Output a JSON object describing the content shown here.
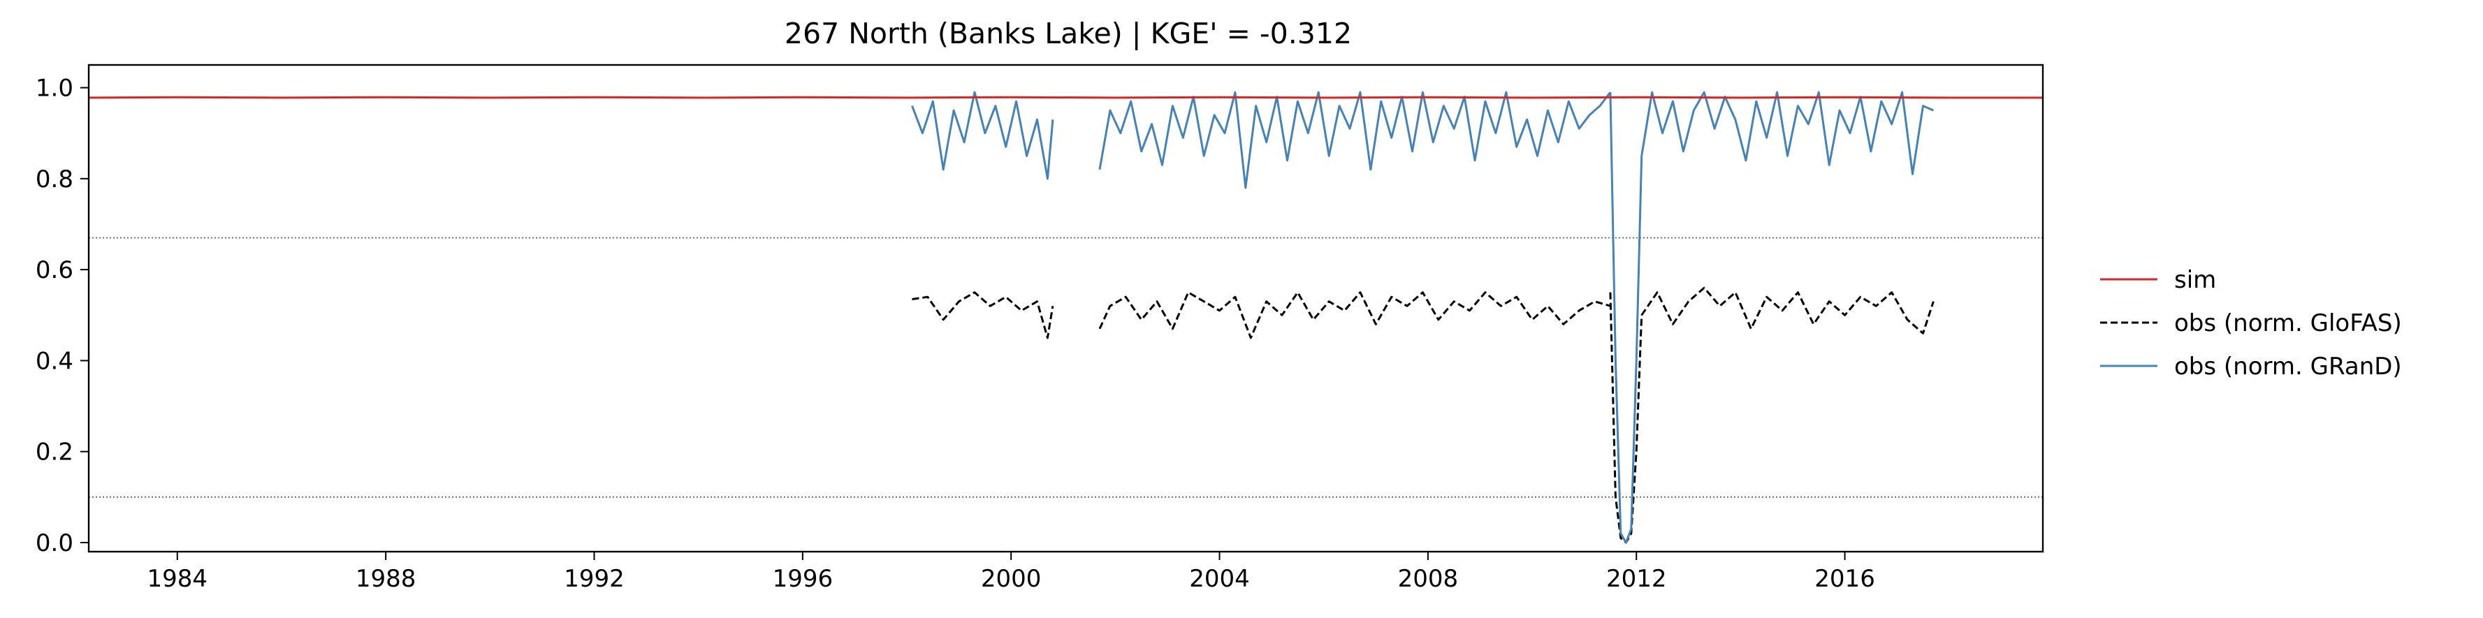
{
  "chart_data": {
    "type": "line",
    "title": "267  North (Banks Lake) | KGE' = -0.312",
    "xlabel": "",
    "ylabel": "",
    "xlim": [
      1982.3,
      2019.8
    ],
    "ylim": [
      -0.02,
      1.05
    ],
    "xticks": [
      1984,
      1988,
      1992,
      1996,
      2000,
      2004,
      2008,
      2012,
      2016
    ],
    "xtick_labels": [
      "1984",
      "1988",
      "1992",
      "1996",
      "2000",
      "2004",
      "2008",
      "2012",
      "2016"
    ],
    "yticks": [
      0.0,
      0.2,
      0.4,
      0.6,
      0.8,
      1.0
    ],
    "ytick_labels": [
      "0.0",
      "0.2",
      "0.4",
      "0.6",
      "0.8",
      "1.0"
    ],
    "reference_lines": [
      0.978,
      0.67,
      0.1
    ],
    "grid": false,
    "legend_position": "outside-right",
    "colors": {
      "sim": "#d62728",
      "glofas": "#000000",
      "grand": "#4682b4",
      "refline": "#555555"
    },
    "series": [
      {
        "name": "sim",
        "style": "solid",
        "x": [
          1982.3,
          1984,
          1986,
          1988,
          1990,
          1992,
          1994,
          1996,
          1998,
          2000,
          2002,
          2004,
          2006,
          2008,
          2010,
          2012,
          2014,
          2016,
          2018,
          2019.8
        ],
        "values": [
          0.978,
          0.979,
          0.978,
          0.979,
          0.978,
          0.979,
          0.978,
          0.979,
          0.978,
          0.979,
          0.978,
          0.979,
          0.978,
          0.979,
          0.978,
          0.979,
          0.978,
          0.979,
          0.978,
          0.978
        ]
      },
      {
        "name": "obs (norm. GloFAS)",
        "style": "dashed",
        "segments": [
          {
            "x": [
              1998.1,
              1998.4,
              1998.7,
              1999.0,
              1999.3,
              1999.6,
              1999.9,
              2000.2,
              2000.5,
              2000.7,
              2000.8
            ],
            "values": [
              0.535,
              0.54,
              0.49,
              0.53,
              0.55,
              0.52,
              0.54,
              0.51,
              0.53,
              0.45,
              0.52
            ]
          },
          {
            "x": [
              2001.7,
              2001.9,
              2002.2,
              2002.5,
              2002.8,
              2003.1,
              2003.4,
              2003.7,
              2004.0,
              2004.3,
              2004.6,
              2004.9,
              2005.2,
              2005.5,
              2005.8,
              2006.1,
              2006.4,
              2006.7,
              2007.0,
              2007.3,
              2007.6,
              2007.9,
              2008.2,
              2008.5,
              2008.8,
              2009.1,
              2009.4,
              2009.7,
              2010.0,
              2010.3,
              2010.6,
              2010.9,
              2011.2,
              2011.5
            ],
            "values": [
              0.47,
              0.52,
              0.54,
              0.49,
              0.53,
              0.47,
              0.55,
              0.53,
              0.51,
              0.54,
              0.45,
              0.53,
              0.5,
              0.55,
              0.49,
              0.53,
              0.51,
              0.55,
              0.48,
              0.54,
              0.52,
              0.55,
              0.49,
              0.53,
              0.51,
              0.55,
              0.52,
              0.54,
              0.49,
              0.52,
              0.48,
              0.51,
              0.53,
              0.52
            ]
          },
          {
            "x": [
              2011.5,
              2011.6,
              2011.7,
              2011.8,
              2011.9,
              2012.0,
              2012.1
            ],
            "values": [
              0.55,
              0.1,
              0.01,
              0.0,
              0.02,
              0.2,
              0.5
            ]
          },
          {
            "x": [
              2012.1,
              2012.4,
              2012.7,
              2013.0,
              2013.3,
              2013.6,
              2013.9,
              2014.2,
              2014.5,
              2014.8,
              2015.1,
              2015.4,
              2015.7,
              2016.0,
              2016.3,
              2016.6,
              2016.9,
              2017.2,
              2017.5,
              2017.7
            ],
            "values": [
              0.5,
              0.55,
              0.48,
              0.53,
              0.56,
              0.52,
              0.55,
              0.47,
              0.54,
              0.51,
              0.55,
              0.48,
              0.53,
              0.5,
              0.54,
              0.52,
              0.55,
              0.49,
              0.46,
              0.53
            ]
          }
        ]
      },
      {
        "name": "obs (norm. GRanD)",
        "style": "solid",
        "segments": [
          {
            "x": [
              1998.1,
              1998.3,
              1998.5,
              1998.7,
              1998.9,
              1999.1,
              1999.3,
              1999.5,
              1999.7,
              1999.9,
              2000.1,
              2000.3,
              2000.5,
              2000.7,
              2000.8
            ],
            "values": [
              0.96,
              0.9,
              0.97,
              0.82,
              0.95,
              0.88,
              0.99,
              0.9,
              0.96,
              0.87,
              0.97,
              0.85,
              0.93,
              0.8,
              0.93
            ]
          },
          {
            "x": [
              2001.7,
              2001.9,
              2002.1,
              2002.3,
              2002.5,
              2002.7,
              2002.9,
              2003.1,
              2003.3,
              2003.5,
              2003.7,
              2003.9,
              2004.1,
              2004.3,
              2004.5,
              2004.7,
              2004.9,
              2005.1,
              2005.3,
              2005.5,
              2005.7,
              2005.9,
              2006.1,
              2006.3,
              2006.5,
              2006.7,
              2006.9,
              2007.1,
              2007.3,
              2007.5,
              2007.7,
              2007.9,
              2008.1,
              2008.3,
              2008.5,
              2008.7,
              2008.9,
              2009.1,
              2009.3,
              2009.5,
              2009.7,
              2009.9,
              2010.1,
              2010.3,
              2010.5,
              2010.7,
              2010.9,
              2011.1,
              2011.3,
              2011.5
            ],
            "values": [
              0.82,
              0.95,
              0.9,
              0.97,
              0.86,
              0.92,
              0.83,
              0.96,
              0.89,
              0.98,
              0.85,
              0.94,
              0.9,
              0.99,
              0.78,
              0.96,
              0.88,
              0.98,
              0.84,
              0.97,
              0.9,
              0.99,
              0.85,
              0.96,
              0.91,
              0.99,
              0.82,
              0.97,
              0.89,
              0.98,
              0.86,
              0.99,
              0.88,
              0.96,
              0.91,
              0.98,
              0.84,
              0.97,
              0.9,
              0.99,
              0.87,
              0.93,
              0.85,
              0.95,
              0.88,
              0.97,
              0.91,
              0.94,
              0.96,
              0.99
            ]
          },
          {
            "x": [
              2011.5,
              2011.6,
              2011.7,
              2011.8,
              2011.9,
              2012.0,
              2012.1
            ],
            "values": [
              0.99,
              0.4,
              0.02,
              0.0,
              0.03,
              0.4,
              0.85
            ]
          },
          {
            "x": [
              2012.1,
              2012.3,
              2012.5,
              2012.7,
              2012.9,
              2013.1,
              2013.3,
              2013.5,
              2013.7,
              2013.9,
              2014.1,
              2014.3,
              2014.5,
              2014.7,
              2014.9,
              2015.1,
              2015.3,
              2015.5,
              2015.7,
              2015.9,
              2016.1,
              2016.3,
              2016.5,
              2016.7,
              2016.9,
              2017.1,
              2017.3,
              2017.5,
              2017.7
            ],
            "values": [
              0.85,
              0.99,
              0.9,
              0.97,
              0.86,
              0.95,
              0.99,
              0.91,
              0.98,
              0.93,
              0.84,
              0.97,
              0.89,
              0.99,
              0.85,
              0.96,
              0.92,
              0.99,
              0.83,
              0.95,
              0.9,
              0.98,
              0.86,
              0.97,
              0.92,
              0.99,
              0.81,
              0.96,
              0.95
            ]
          }
        ]
      }
    ]
  }
}
